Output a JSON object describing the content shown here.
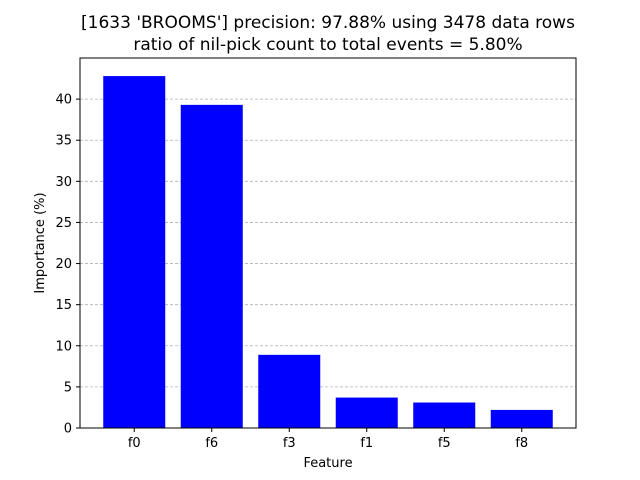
{
  "chart_data": {
    "type": "bar",
    "title": "[1633 'BROOMS'] precision: 97.88% using 3478 data rows",
    "subtitle": "ratio of nil-pick count to total events = 5.80%",
    "xlabel": "Feature",
    "ylabel": "Importance (%)",
    "categories": [
      "f0",
      "f6",
      "f3",
      "f1",
      "f5",
      "f8"
    ],
    "values": [
      42.8,
      39.3,
      8.9,
      3.7,
      3.1,
      2.2
    ],
    "ylim": [
      0,
      45
    ],
    "yticks": [
      0,
      5,
      10,
      15,
      20,
      25,
      30,
      35,
      40
    ],
    "grid": "y-dashed",
    "bar_color": "#0000ff",
    "grid_color": "#b0b0b0"
  }
}
